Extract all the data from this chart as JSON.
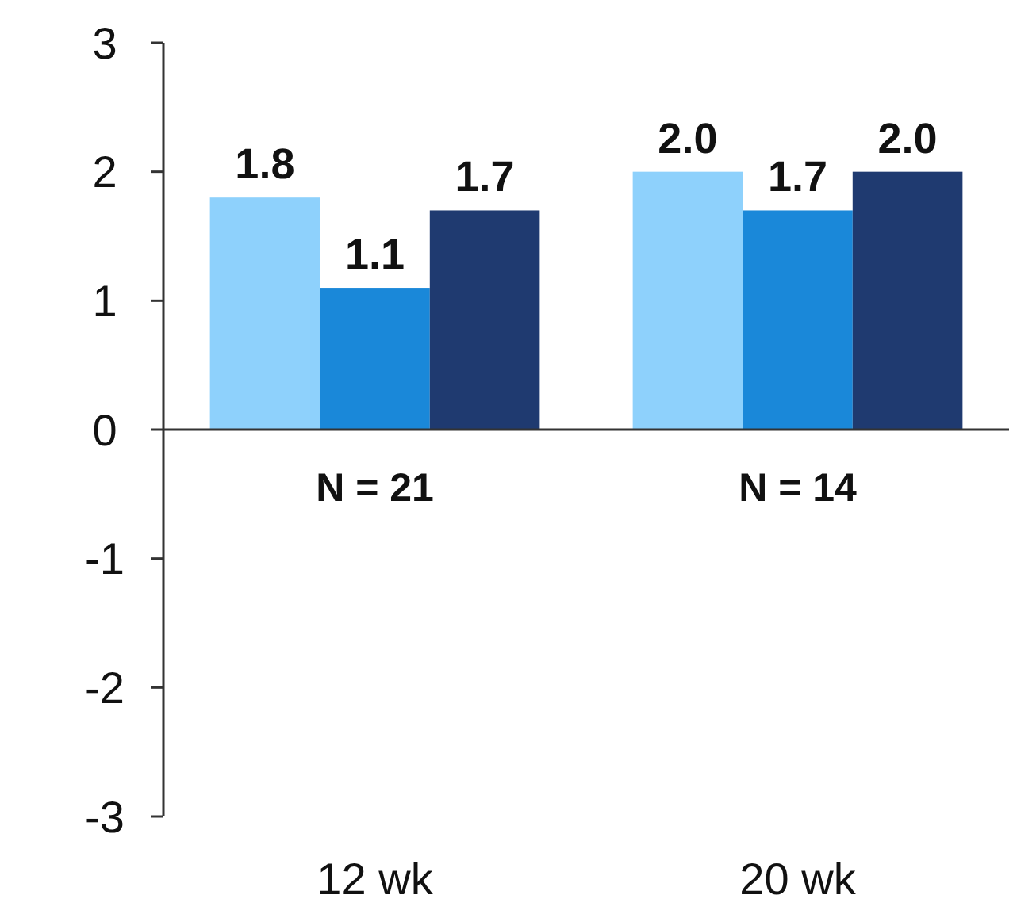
{
  "chart_data": {
    "type": "bar",
    "categories": [
      "12 wk",
      "20 wk"
    ],
    "series": [
      {
        "color": "#8ed1fc",
        "values": [
          1.8,
          2.0
        ],
        "value_labels": [
          "1.8",
          "2.0"
        ]
      },
      {
        "color": "#1a88d9",
        "values": [
          1.1,
          1.7
        ],
        "value_labels": [
          "1.1",
          "1.7"
        ]
      },
      {
        "color": "#1f3a70",
        "values": [
          1.7,
          2.0
        ],
        "value_labels": [
          "1.7",
          "2.0"
        ]
      }
    ],
    "ylim": [
      -3,
      3
    ],
    "yticks": [
      -3,
      -2,
      -1,
      0,
      1,
      2,
      3
    ],
    "annotations": [
      "N = 21",
      "N = 14"
    ]
  }
}
